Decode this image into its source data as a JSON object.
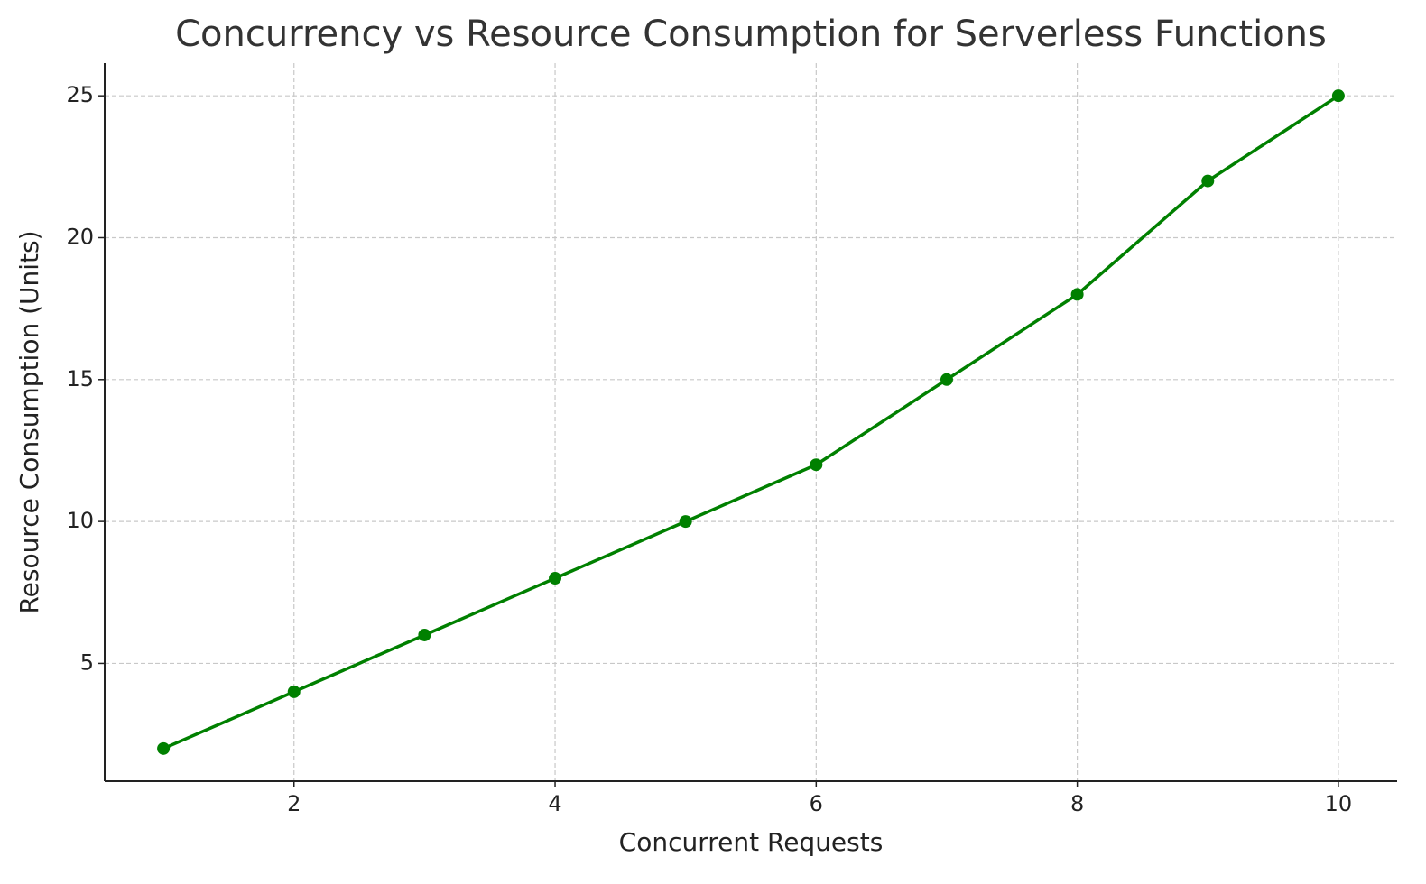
{
  "chart_data": {
    "type": "line",
    "title": "Concurrency vs Resource Consumption for Serverless Functions",
    "x_label": "Concurrent Requests",
    "y_label": "Resource Consumption (Units)",
    "x": [
      1,
      2,
      3,
      4,
      5,
      6,
      7,
      8,
      9,
      10
    ],
    "series": [
      {
        "color": "#008000",
        "values": [
          2,
          4,
          6,
          8,
          10,
          12,
          15,
          18,
          22,
          25
        ]
      }
    ],
    "xlim": [
      0.55,
      10.45
    ],
    "ylim": [
      0.85,
      26.15
    ],
    "xticks": [
      2,
      4,
      6,
      8,
      10
    ],
    "yticks": [
      5,
      10,
      15,
      20,
      25
    ],
    "grid": true,
    "markers": true
  }
}
